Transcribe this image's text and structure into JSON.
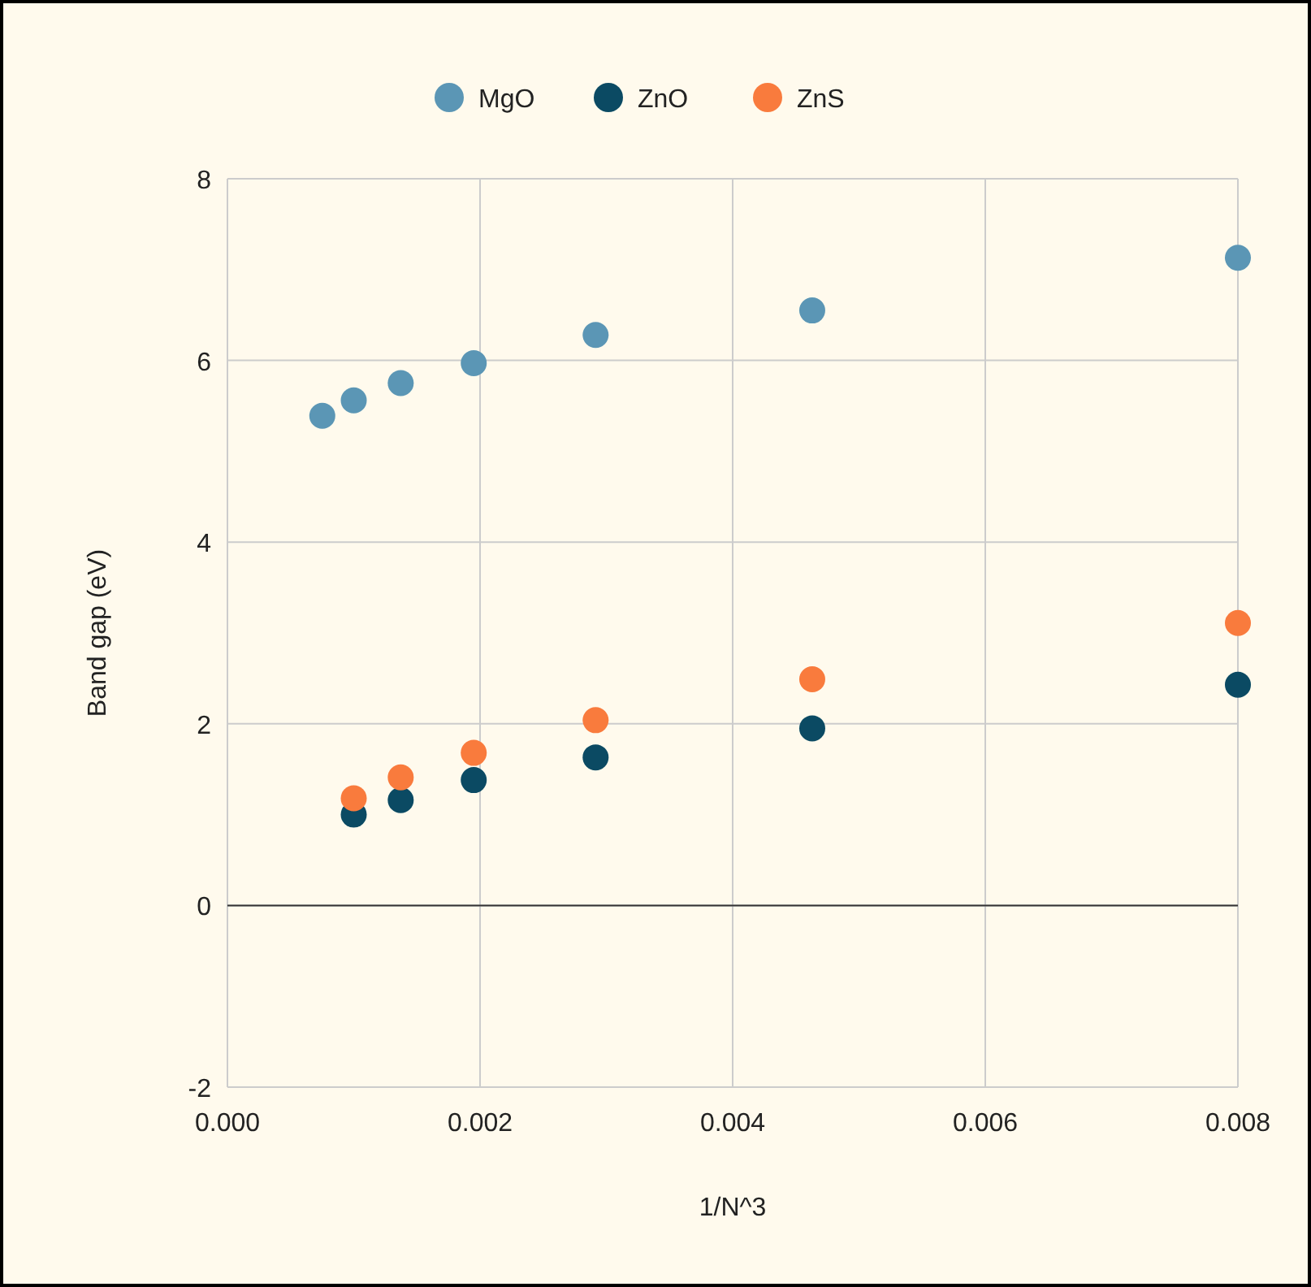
{
  "chart_data": {
    "type": "scatter",
    "xlabel": "1/N^3",
    "ylabel": "Band gap (eV)",
    "x": [
      0.000751,
      0.001,
      0.001372,
      0.00195,
      0.002915,
      0.00463,
      0.008
    ],
    "series": [
      {
        "name": "MgO",
        "color": "#5b96b5",
        "values": [
          5.39,
          5.56,
          5.75,
          5.97,
          6.28,
          6.55,
          7.13
        ]
      },
      {
        "name": "ZnO",
        "color": "#0b4a63",
        "values": [
          null,
          1.0,
          1.16,
          1.38,
          1.63,
          1.95,
          2.43
        ]
      },
      {
        "name": "ZnS",
        "color": "#f97b3d",
        "values": [
          null,
          1.18,
          1.41,
          1.68,
          2.04,
          2.49,
          3.11
        ]
      }
    ],
    "xlim": [
      0,
      0.008
    ],
    "xticks": [
      {
        "value": 0,
        "label": "0.000"
      },
      {
        "value": 0.002,
        "label": "0.002"
      },
      {
        "value": 0.004,
        "label": "0.004"
      },
      {
        "value": 0.006,
        "label": "0.006"
      },
      {
        "value": 0.008,
        "label": "0.008"
      }
    ],
    "ylim": [
      -2,
      8
    ],
    "yticks": [
      -2,
      0,
      2,
      4,
      6,
      8
    ],
    "grid": true,
    "legend": "top",
    "marker": "circle",
    "ref_lines": [
      {
        "axis": "y",
        "value": 0,
        "color": "#333333"
      }
    ]
  }
}
